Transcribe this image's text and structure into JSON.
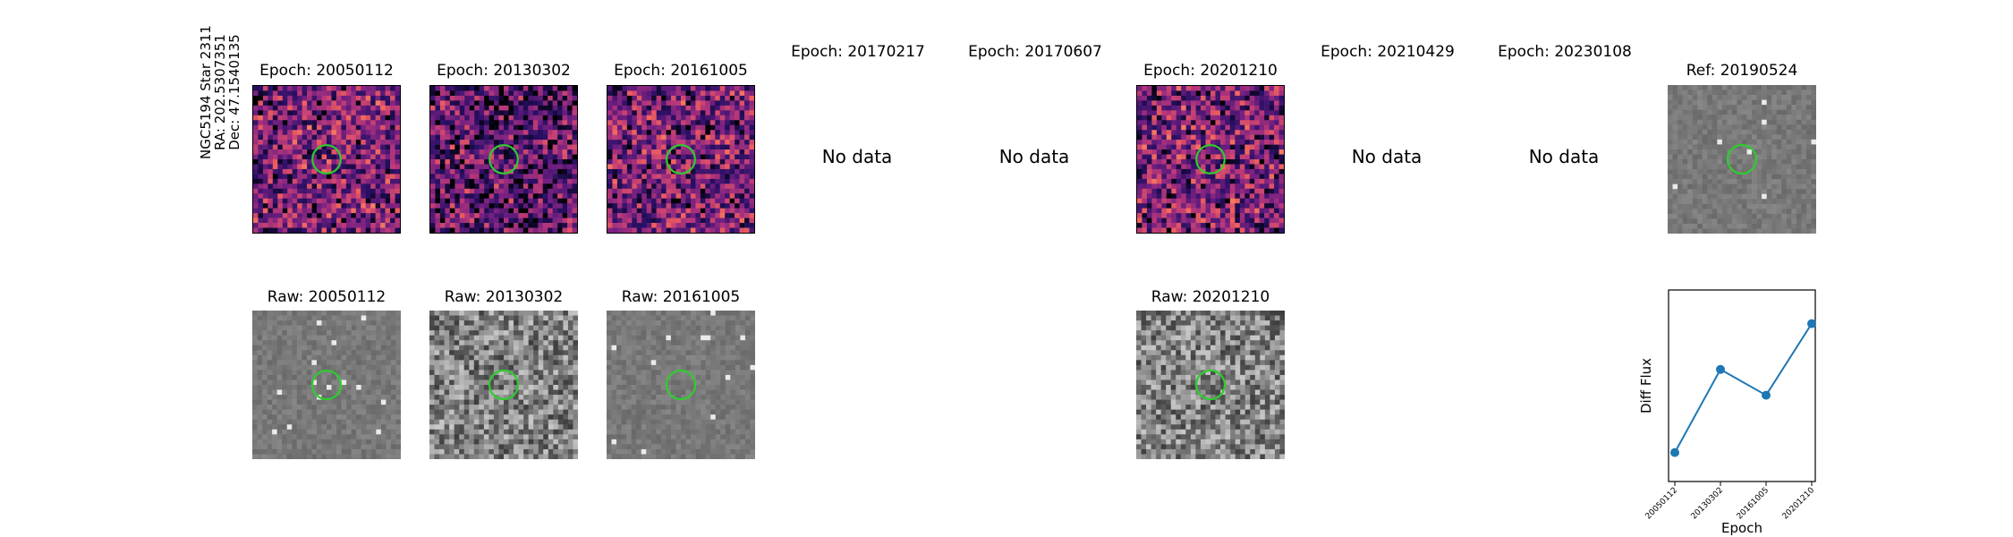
{
  "star_label": {
    "line1": "NGC5194 Star 2311",
    "line2": "RA: 202.5307351",
    "line3": "Dec: 47.1540135"
  },
  "row1": [
    {
      "title": "Epoch: 20050112",
      "has_data": true
    },
    {
      "title": "Epoch: 20130302",
      "has_data": true
    },
    {
      "title": "Epoch: 20161005",
      "has_data": true
    },
    {
      "title": "Epoch: 20170217",
      "has_data": false,
      "note": "No data"
    },
    {
      "title": "Epoch: 20170607",
      "has_data": false,
      "note": "No data"
    },
    {
      "title": "Epoch: 20201210",
      "has_data": true
    },
    {
      "title": "Epoch: 20210429",
      "has_data": false,
      "note": "No data"
    },
    {
      "title": "Epoch: 20230108",
      "has_data": false,
      "note": "No data"
    },
    {
      "title": "Ref: 20190524",
      "has_data": true
    }
  ],
  "row2": [
    {
      "title": "Raw: 20050112"
    },
    {
      "title": "Raw: 20130302"
    },
    {
      "title": "Raw: 20161005"
    },
    {
      "title": "Raw: 20201210"
    }
  ],
  "colors": {
    "circle": "#2fcc2f",
    "line": "#1f77b4",
    "diff_colormap": "magma",
    "raw_colormap": "gray"
  },
  "chart_data": {
    "type": "line",
    "x": [
      "20050112",
      "20130302",
      "20161005",
      "20201210"
    ],
    "y": [
      0.04,
      0.62,
      0.44,
      0.94
    ],
    "ylabel": "Diff Flux",
    "xlabel": "Epoch",
    "ylim": [
      0,
      1
    ],
    "yticks_shown": false,
    "marker": "circle"
  }
}
